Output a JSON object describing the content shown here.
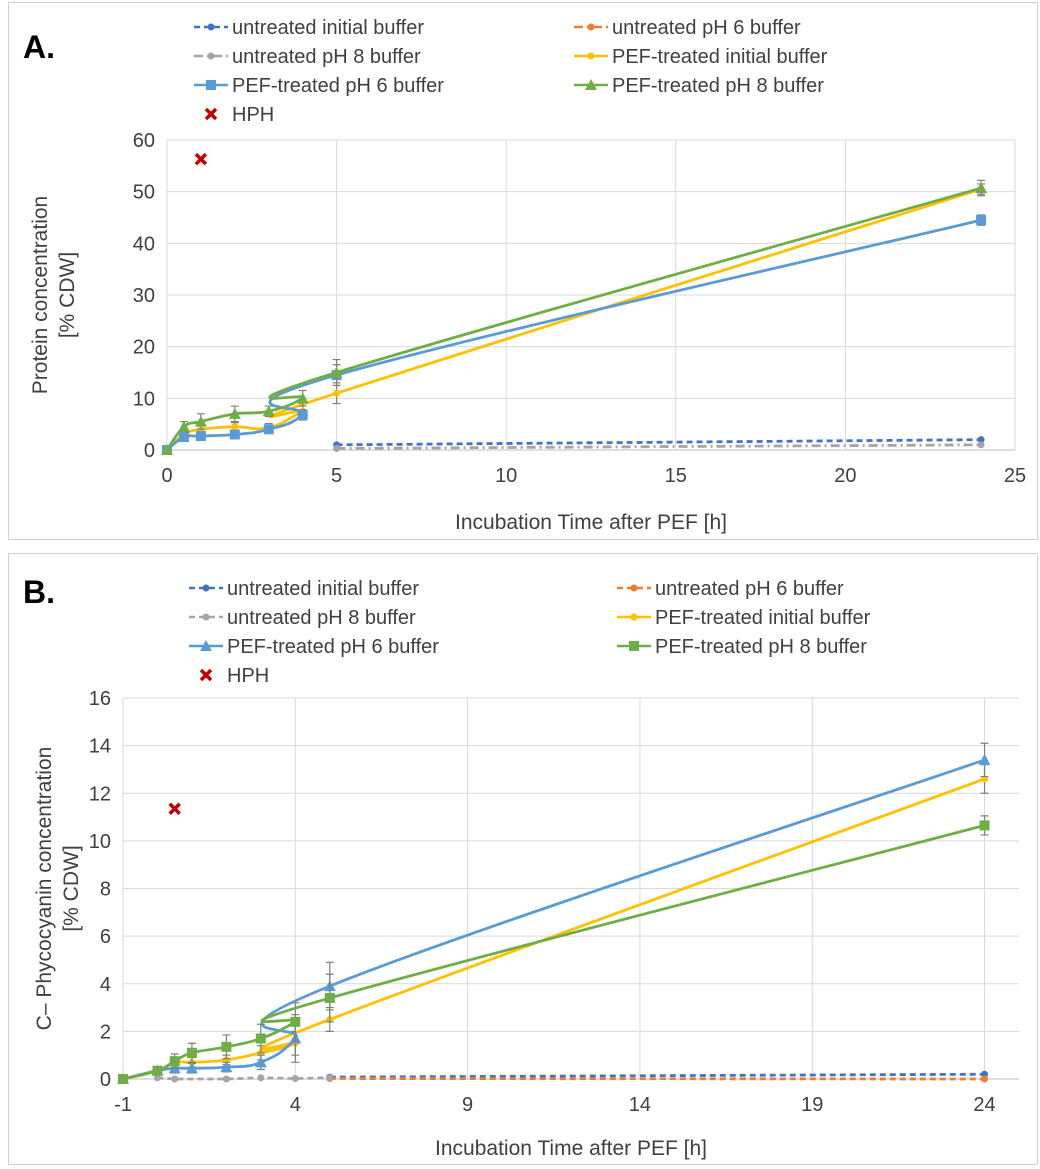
{
  "panels": [
    {
      "letter": "A."
    },
    {
      "letter": "B."
    }
  ],
  "chart_data": [
    {
      "type": "line",
      "xlabel": "Incubation Time after PEF [h]",
      "ylabel_lines": [
        "Protein concentration",
        "[% CDW]"
      ],
      "xlim": [
        0,
        25
      ],
      "ylim": [
        0,
        60
      ],
      "xticks": [
        0,
        5,
        10,
        15,
        20,
        25
      ],
      "yticks": [
        0,
        10,
        20,
        30,
        40,
        50,
        60
      ],
      "grid": true,
      "legend_position": "top",
      "series": [
        {
          "name": "untreated initial buffer",
          "color": "#4472c4",
          "dash": "dashed",
          "marker": "circle",
          "smooth": false,
          "x": [
            5,
            24
          ],
          "y": [
            1.0,
            2.0
          ],
          "err": [
            0,
            0
          ]
        },
        {
          "name": "untreated pH 6 buffer",
          "color": "#ed7d31",
          "dash": "dashdot",
          "marker": "circle",
          "smooth": false,
          "x": [],
          "y": [],
          "err": []
        },
        {
          "name": "untreated pH 8 buffer",
          "color": "#a5a5a5",
          "dash": "dashdot",
          "marker": "circle",
          "smooth": false,
          "x": [
            5,
            24
          ],
          "y": [
            0.3,
            1.0
          ],
          "err": [
            0,
            0
          ]
        },
        {
          "name": "PEF-treated initial buffer",
          "color": "#ffc000",
          "dash": "solid",
          "marker": "circle",
          "smooth": true,
          "x": [
            0,
            0.5,
            1,
            2,
            3,
            4,
            5,
            24
          ],
          "y": [
            0,
            3.0,
            4.0,
            4.5,
            4.3,
            7.5,
            11.0,
            50.5
          ],
          "err": [
            0,
            0.8,
            1.0,
            0.8,
            0.8,
            1.5,
            2.0,
            1.0
          ]
        },
        {
          "name": "PEF-treated pH 6 buffer",
          "color": "#5b9bd5",
          "dash": "solid",
          "marker": "square",
          "smooth": true,
          "x": [
            0,
            0.5,
            1,
            2,
            3,
            4,
            5,
            24
          ],
          "y": [
            0,
            2.5,
            2.7,
            3.0,
            4.0,
            6.8,
            14.5,
            44.5
          ],
          "err": [
            0,
            0.5,
            0.5,
            0.5,
            0.5,
            1.0,
            2.0,
            1.0
          ]
        },
        {
          "name": "PEF-treated pH 8 buffer",
          "color": "#70ad47",
          "dash": "solid",
          "marker": "triangle",
          "smooth": true,
          "x": [
            0,
            0.5,
            1,
            2,
            3,
            4,
            5,
            24
          ],
          "y": [
            0,
            4.5,
            5.5,
            7.0,
            7.5,
            10.0,
            15.0,
            50.7
          ],
          "err": [
            0,
            1.0,
            1.5,
            1.5,
            1.0,
            1.5,
            2.5,
            1.5
          ]
        },
        {
          "name": "HPH",
          "color": "#c00000",
          "dash": "none",
          "marker": "x",
          "smooth": false,
          "x": [
            1
          ],
          "y": [
            56.3
          ],
          "err": [
            0
          ]
        }
      ]
    },
    {
      "type": "line",
      "xlabel": "Incubation Time after PEF [h]",
      "ylabel_lines": [
        "C– Phycocyanin concentration",
        "[% CDW]"
      ],
      "xlim": [
        -1,
        25
      ],
      "ylim": [
        0,
        16
      ],
      "xticks": [
        -1,
        4,
        9,
        14,
        19,
        24
      ],
      "xtick_labels": [
        "-1",
        "4",
        "9",
        "14",
        "19",
        "24"
      ],
      "yticks": [
        0,
        2,
        4,
        6,
        8,
        10,
        12,
        14,
        16
      ],
      "grid": true,
      "legend_position": "top",
      "series": [
        {
          "name": "untreated initial buffer",
          "color": "#4472c4",
          "dash": "dashed",
          "marker": "circle",
          "smooth": false,
          "x": [
            5,
            24
          ],
          "y": [
            0.08,
            0.2
          ],
          "err": [
            0,
            0
          ]
        },
        {
          "name": "untreated pH 6 buffer",
          "color": "#ed7d31",
          "dash": "dashed",
          "marker": "circle",
          "smooth": false,
          "x": [
            5,
            24
          ],
          "y": [
            0.02,
            0.0
          ],
          "err": [
            0,
            0
          ]
        },
        {
          "name": "untreated pH 8 buffer",
          "color": "#a5a5a5",
          "dash": "dashed",
          "marker": "circle",
          "smooth": false,
          "x": [
            0,
            0.5,
            2,
            3,
            4,
            5
          ],
          "y": [
            0.05,
            0.0,
            0.0,
            0.05,
            0.02,
            0.05
          ],
          "err": [
            0,
            0,
            0,
            0,
            0,
            0
          ]
        },
        {
          "name": "PEF-treated initial buffer",
          "color": "#ffc000",
          "dash": "solid",
          "marker": "circle",
          "smooth": true,
          "x": [
            -1,
            0,
            0.5,
            1,
            2,
            3,
            4,
            5,
            24
          ],
          "y": [
            0,
            0.35,
            0.7,
            0.7,
            0.8,
            1.1,
            1.5,
            2.5,
            12.6
          ],
          "err": [
            0,
            0,
            0.2,
            0.2,
            0.2,
            0.3,
            0.5,
            0.5,
            0.6
          ]
        },
        {
          "name": "PEF-treated pH 6 buffer",
          "color": "#5b9bd5",
          "dash": "solid",
          "marker": "triangle",
          "smooth": true,
          "x": [
            -1,
            0,
            0.5,
            1,
            2,
            3,
            4,
            5,
            24
          ],
          "y": [
            0,
            0.35,
            0.45,
            0.45,
            0.5,
            0.7,
            1.7,
            3.9,
            13.4
          ],
          "err": [
            0,
            0,
            0.2,
            0.2,
            0.2,
            0.3,
            1.0,
            1.0,
            0.7
          ]
        },
        {
          "name": "PEF-treated pH 8 buffer",
          "color": "#70ad47",
          "dash": "solid",
          "marker": "square",
          "smooth": true,
          "x": [
            -1,
            0,
            0.5,
            1,
            2,
            3,
            4,
            5,
            24
          ],
          "y": [
            0,
            0.35,
            0.75,
            1.1,
            1.35,
            1.7,
            2.4,
            3.4,
            10.65
          ],
          "err": [
            0,
            0,
            0.3,
            0.4,
            0.5,
            0.6,
            0.8,
            1.0,
            0.4
          ]
        },
        {
          "name": "HPH",
          "color": "#c00000",
          "dash": "none",
          "marker": "x",
          "smooth": false,
          "x": [
            0.5
          ],
          "y": [
            11.35
          ],
          "err": [
            0
          ]
        }
      ]
    }
  ]
}
